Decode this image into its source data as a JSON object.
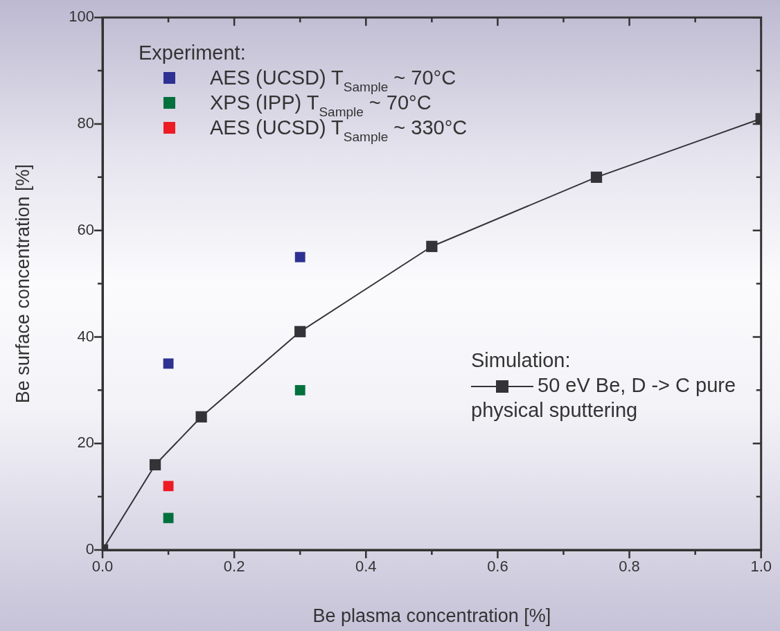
{
  "chart_data": {
    "type": "scatter",
    "xlabel": "Be plasma concentration [%]",
    "ylabel": "Be surface concentration [%]",
    "xlim": [
      0,
      1.0
    ],
    "xticks": [
      {
        "value": 0,
        "label": "0.0"
      },
      {
        "value": 0.1,
        "label": null
      },
      {
        "value": 0.2,
        "label": "0.2"
      },
      {
        "value": 0.3,
        "label": null
      },
      {
        "value": 0.4,
        "label": "0.4"
      },
      {
        "value": 0.5,
        "label": null
      },
      {
        "value": 0.6,
        "label": "0.6"
      },
      {
        "value": 0.7,
        "label": null
      },
      {
        "value": 0.8,
        "label": "0.8"
      },
      {
        "value": 0.9,
        "label": null
      },
      {
        "value": 1.0,
        "label": "1.0"
      }
    ],
    "ylim": [
      0,
      100
    ],
    "yticks": [
      0,
      {
        "value": 10,
        "label": null
      },
      20,
      {
        "value": 30,
        "label": null
      },
      40,
      {
        "value": 50,
        "label": null
      },
      60,
      {
        "value": 70,
        "label": null
      },
      80,
      {
        "value": 90,
        "label": null
      },
      100
    ],
    "grid": false,
    "legend": "top left",
    "marker": "square",
    "legend_title": "Experiment:",
    "annotations": [
      "Simulation:"
    ],
    "series": [
      {
        "name": "AES (UCSD) T$_{Sample}$ ~ 70°C",
        "color": "#2e3192",
        "x": [
          0.1,
          0.3
        ],
        "values": [
          35,
          55
        ]
      },
      {
        "name": "XPS (IPP) T$_{Sample}$ ~ 70°C",
        "color": "#00703c",
        "x": [
          0.1,
          0.3
        ],
        "values": [
          6,
          30
        ]
      },
      {
        "name": "AES (UCSD) T$_{Sample}$ ~ 330°C",
        "color": "#ed1c24",
        "x": [
          0.1
        ],
        "values": [
          12
        ]
      },
      {
        "name": "50 eV Be, D -> C pure physical sputtering",
        "type": "line",
        "line_style": "solid",
        "color": "#333338",
        "x": [
          0,
          0.08,
          0.15,
          0.3,
          0.5,
          0.75,
          1.0
        ],
        "values": [
          0,
          16,
          25,
          41,
          57,
          70,
          81
        ]
      }
    ]
  }
}
